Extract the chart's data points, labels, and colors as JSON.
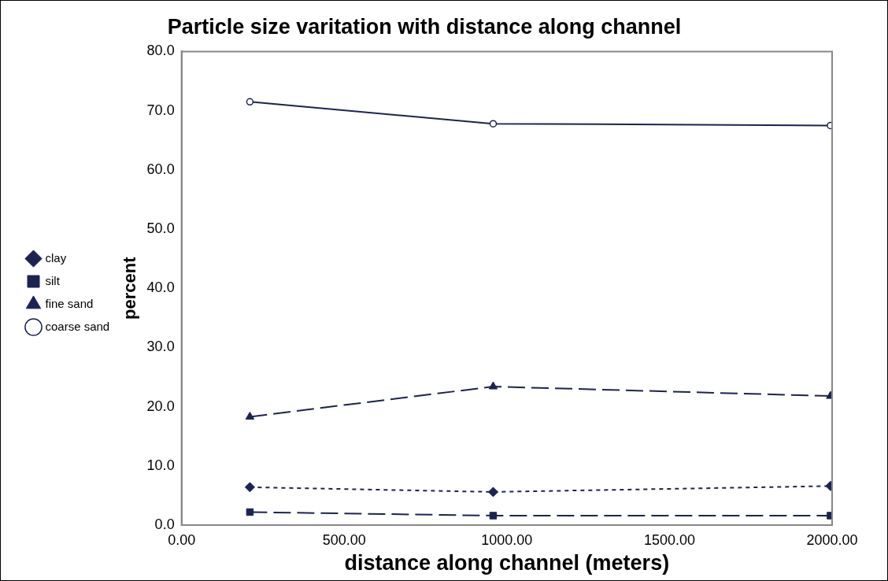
{
  "chart_data": {
    "type": "line",
    "title": "Particle size varitation with distance along channel",
    "xlabel": "distance along channel (meters)",
    "ylabel": "percent",
    "x": [
      210,
      958,
      1995
    ],
    "series": [
      {
        "name": "clay",
        "color": "#1c2351",
        "values": [
          6.4,
          5.6,
          6.6
        ],
        "marker": "diamond",
        "line_style": "dotted"
      },
      {
        "name": "silt",
        "color": "#1c2351",
        "values": [
          2.2,
          1.6,
          1.6
        ],
        "marker": "square",
        "line_style": "dashed"
      },
      {
        "name": "fine sand",
        "color": "#1c2351",
        "values": [
          18.3,
          23.4,
          21.8
        ],
        "marker": "triangle",
        "line_style": "dashed"
      },
      {
        "name": "coarse sand",
        "color": "#1c2351",
        "values": [
          71.5,
          67.8,
          67.5
        ],
        "marker": "circle",
        "line_style": "solid"
      }
    ],
    "xlim": [
      0,
      2000
    ],
    "xticks": [
      {
        "value": 0,
        "label": "0.00"
      },
      {
        "value": 500,
        "label": "500.00"
      },
      {
        "value": 1000,
        "label": "1000.00"
      },
      {
        "value": 1500,
        "label": "1500.00"
      },
      {
        "value": 2000,
        "label": "2000.00"
      }
    ],
    "ylim": [
      0,
      80
    ],
    "yticks": [
      {
        "value": 0,
        "label": "0.0"
      },
      {
        "value": 10,
        "label": "10.0"
      },
      {
        "value": 20,
        "label": "20.0"
      },
      {
        "value": 30,
        "label": "30.0"
      },
      {
        "value": 40,
        "label": "40.0"
      },
      {
        "value": 50,
        "label": "50.0"
      },
      {
        "value": 60,
        "label": "60.0"
      },
      {
        "value": 70,
        "label": "70.0"
      },
      {
        "value": 80,
        "label": "80.0"
      }
    ],
    "grid": false,
    "legend": "left"
  }
}
